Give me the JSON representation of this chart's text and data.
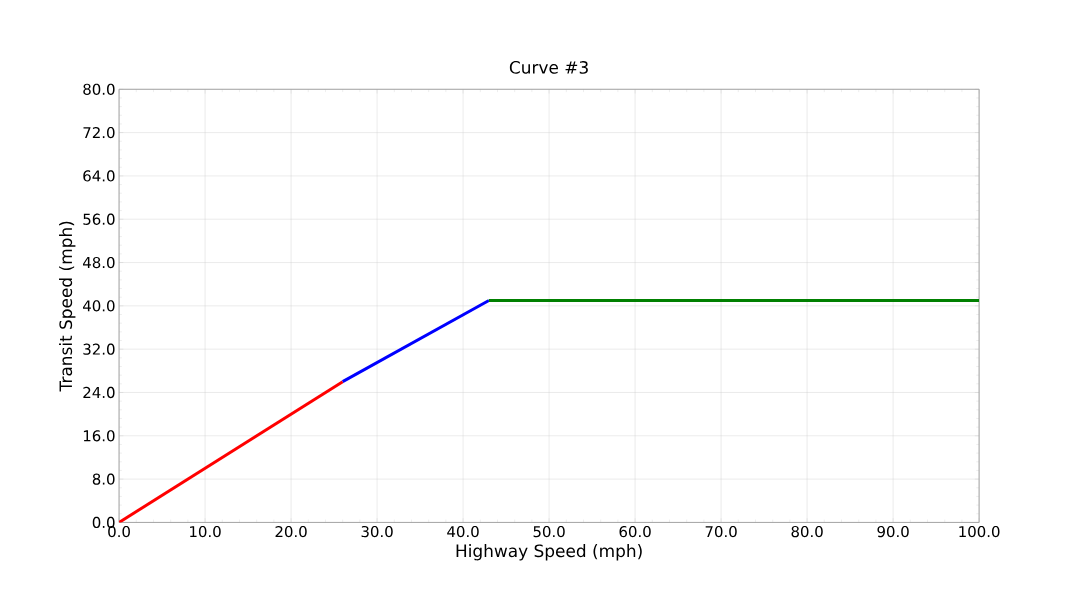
{
  "chart_data": {
    "type": "line",
    "title": "Curve #3",
    "xlabel": "Highway Speed (mph)",
    "ylabel": "Transit Speed (mph)",
    "series": [
      {
        "color": "#ff0000",
        "x": [
          0,
          26
        ],
        "values": [
          0,
          26
        ]
      },
      {
        "color": "#0000ff",
        "x": [
          26,
          43
        ],
        "values": [
          26,
          41
        ]
      },
      {
        "color": "#008000",
        "x": [
          43,
          100
        ],
        "values": [
          41,
          41
        ]
      }
    ],
    "xlim": [
      0,
      100
    ],
    "ylim": [
      0,
      80
    ],
    "xticks": [
      {
        "value": 0,
        "label": "0.0"
      },
      {
        "value": 10,
        "label": "10.0"
      },
      {
        "value": 20,
        "label": "20.0"
      },
      {
        "value": 30,
        "label": "30.0"
      },
      {
        "value": 40,
        "label": "40.0"
      },
      {
        "value": 50,
        "label": "50.0"
      },
      {
        "value": 60,
        "label": "60.0"
      },
      {
        "value": 70,
        "label": "70.0"
      },
      {
        "value": 80,
        "label": "80.0"
      },
      {
        "value": 90,
        "label": "90.0"
      },
      {
        "value": 100,
        "label": "100.0"
      }
    ],
    "yticks": [
      {
        "value": 0,
        "label": "0.0"
      },
      {
        "value": 8,
        "label": "8.0"
      },
      {
        "value": 16,
        "label": "16.0"
      },
      {
        "value": 24,
        "label": "24.0"
      },
      {
        "value": 32,
        "label": "32.0"
      },
      {
        "value": 40,
        "label": "40.0"
      },
      {
        "value": 48,
        "label": "48.0"
      },
      {
        "value": 56,
        "label": "56.0"
      },
      {
        "value": 64,
        "label": "64.0"
      },
      {
        "value": 72,
        "label": "72.0"
      },
      {
        "value": 80,
        "label": "80.0"
      }
    ],
    "grid": true,
    "marker": "none",
    "line_style": "solid"
  }
}
